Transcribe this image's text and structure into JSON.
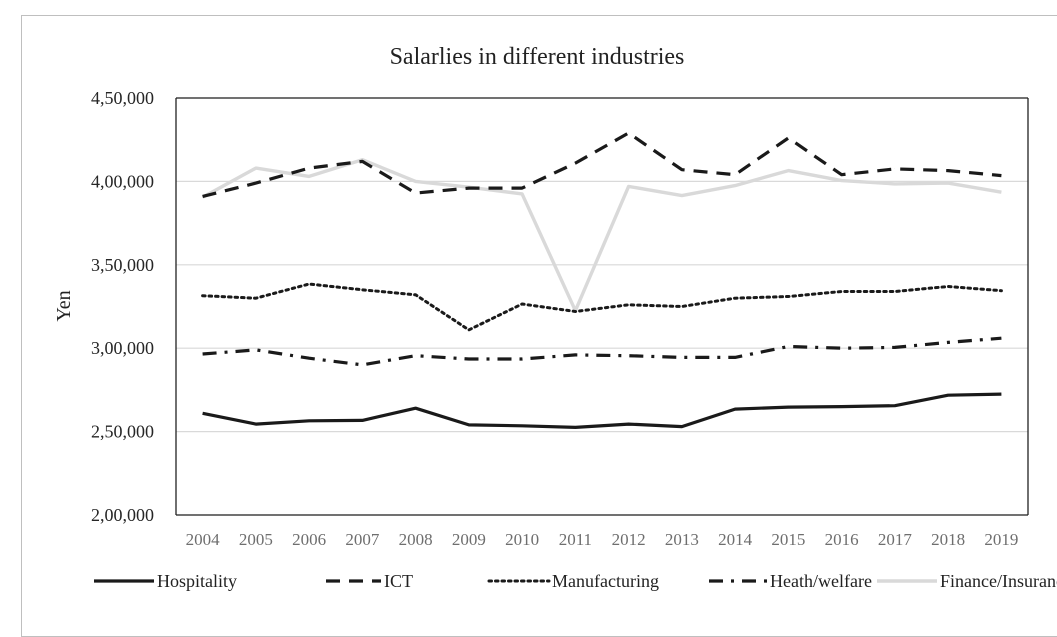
{
  "chart_data": {
    "type": "line",
    "title": "Salarlies in different industries",
    "xlabel": "",
    "ylabel": "Yen",
    "ylim": [
      200000,
      450000
    ],
    "y_ticks": [
      {
        "value": 200000,
        "label": "2,00,000"
      },
      {
        "value": 250000,
        "label": "2,50,000"
      },
      {
        "value": 300000,
        "label": "3,00,000"
      },
      {
        "value": 350000,
        "label": "3,50,000"
      },
      {
        "value": 400000,
        "label": "4,00,000"
      },
      {
        "value": 450000,
        "label": "4,50,000"
      }
    ],
    "categories": [
      "2004",
      "2005",
      "2006",
      "2007",
      "2008",
      "2009",
      "2010",
      "2011",
      "2012",
      "2013",
      "2014",
      "2015",
      "2016",
      "2017",
      "2018",
      "2019"
    ],
    "grid": true,
    "legend_position": "bottom",
    "series": [
      {
        "name": "Hospitality",
        "style": "solid",
        "color": "#1a1a1a",
        "values": [
          261000,
          254500,
          256500,
          256700,
          264000,
          254000,
          253500,
          252500,
          254500,
          253000,
          263500,
          264700,
          265000,
          265500,
          271800,
          272500
        ]
      },
      {
        "name": "ICT",
        "style": "dashed",
        "color": "#1a1a1a",
        "values": [
          391000,
          399000,
          408000,
          412000,
          393000,
          396000,
          396000,
          411000,
          429000,
          407000,
          404000,
          426000,
          404000,
          407500,
          406500,
          403500
        ]
      },
      {
        "name": "Manufacturing",
        "style": "dotted",
        "color": "#1a1a1a",
        "values": [
          331500,
          330000,
          338500,
          335000,
          332000,
          311000,
          326500,
          322000,
          326000,
          325000,
          330000,
          331000,
          334000,
          334000,
          337000,
          334500
        ]
      },
      {
        "name": "Heath/welfare",
        "style": "dashdot",
        "color": "#1a1a1a",
        "values": [
          296500,
          299000,
          294000,
          290000,
          295500,
          293500,
          293500,
          296000,
          295500,
          294500,
          294500,
          301000,
          300000,
          300500,
          303500,
          306000
        ]
      },
      {
        "name": "Finance/Insurance",
        "style": "solid-light",
        "color": "#d9d9d9",
        "values": [
          390500,
          408000,
          403000,
          413000,
          400000,
          396500,
          392500,
          322500,
          397000,
          391500,
          397500,
          406500,
          400500,
          398500,
          399000,
          393500
        ]
      }
    ]
  }
}
